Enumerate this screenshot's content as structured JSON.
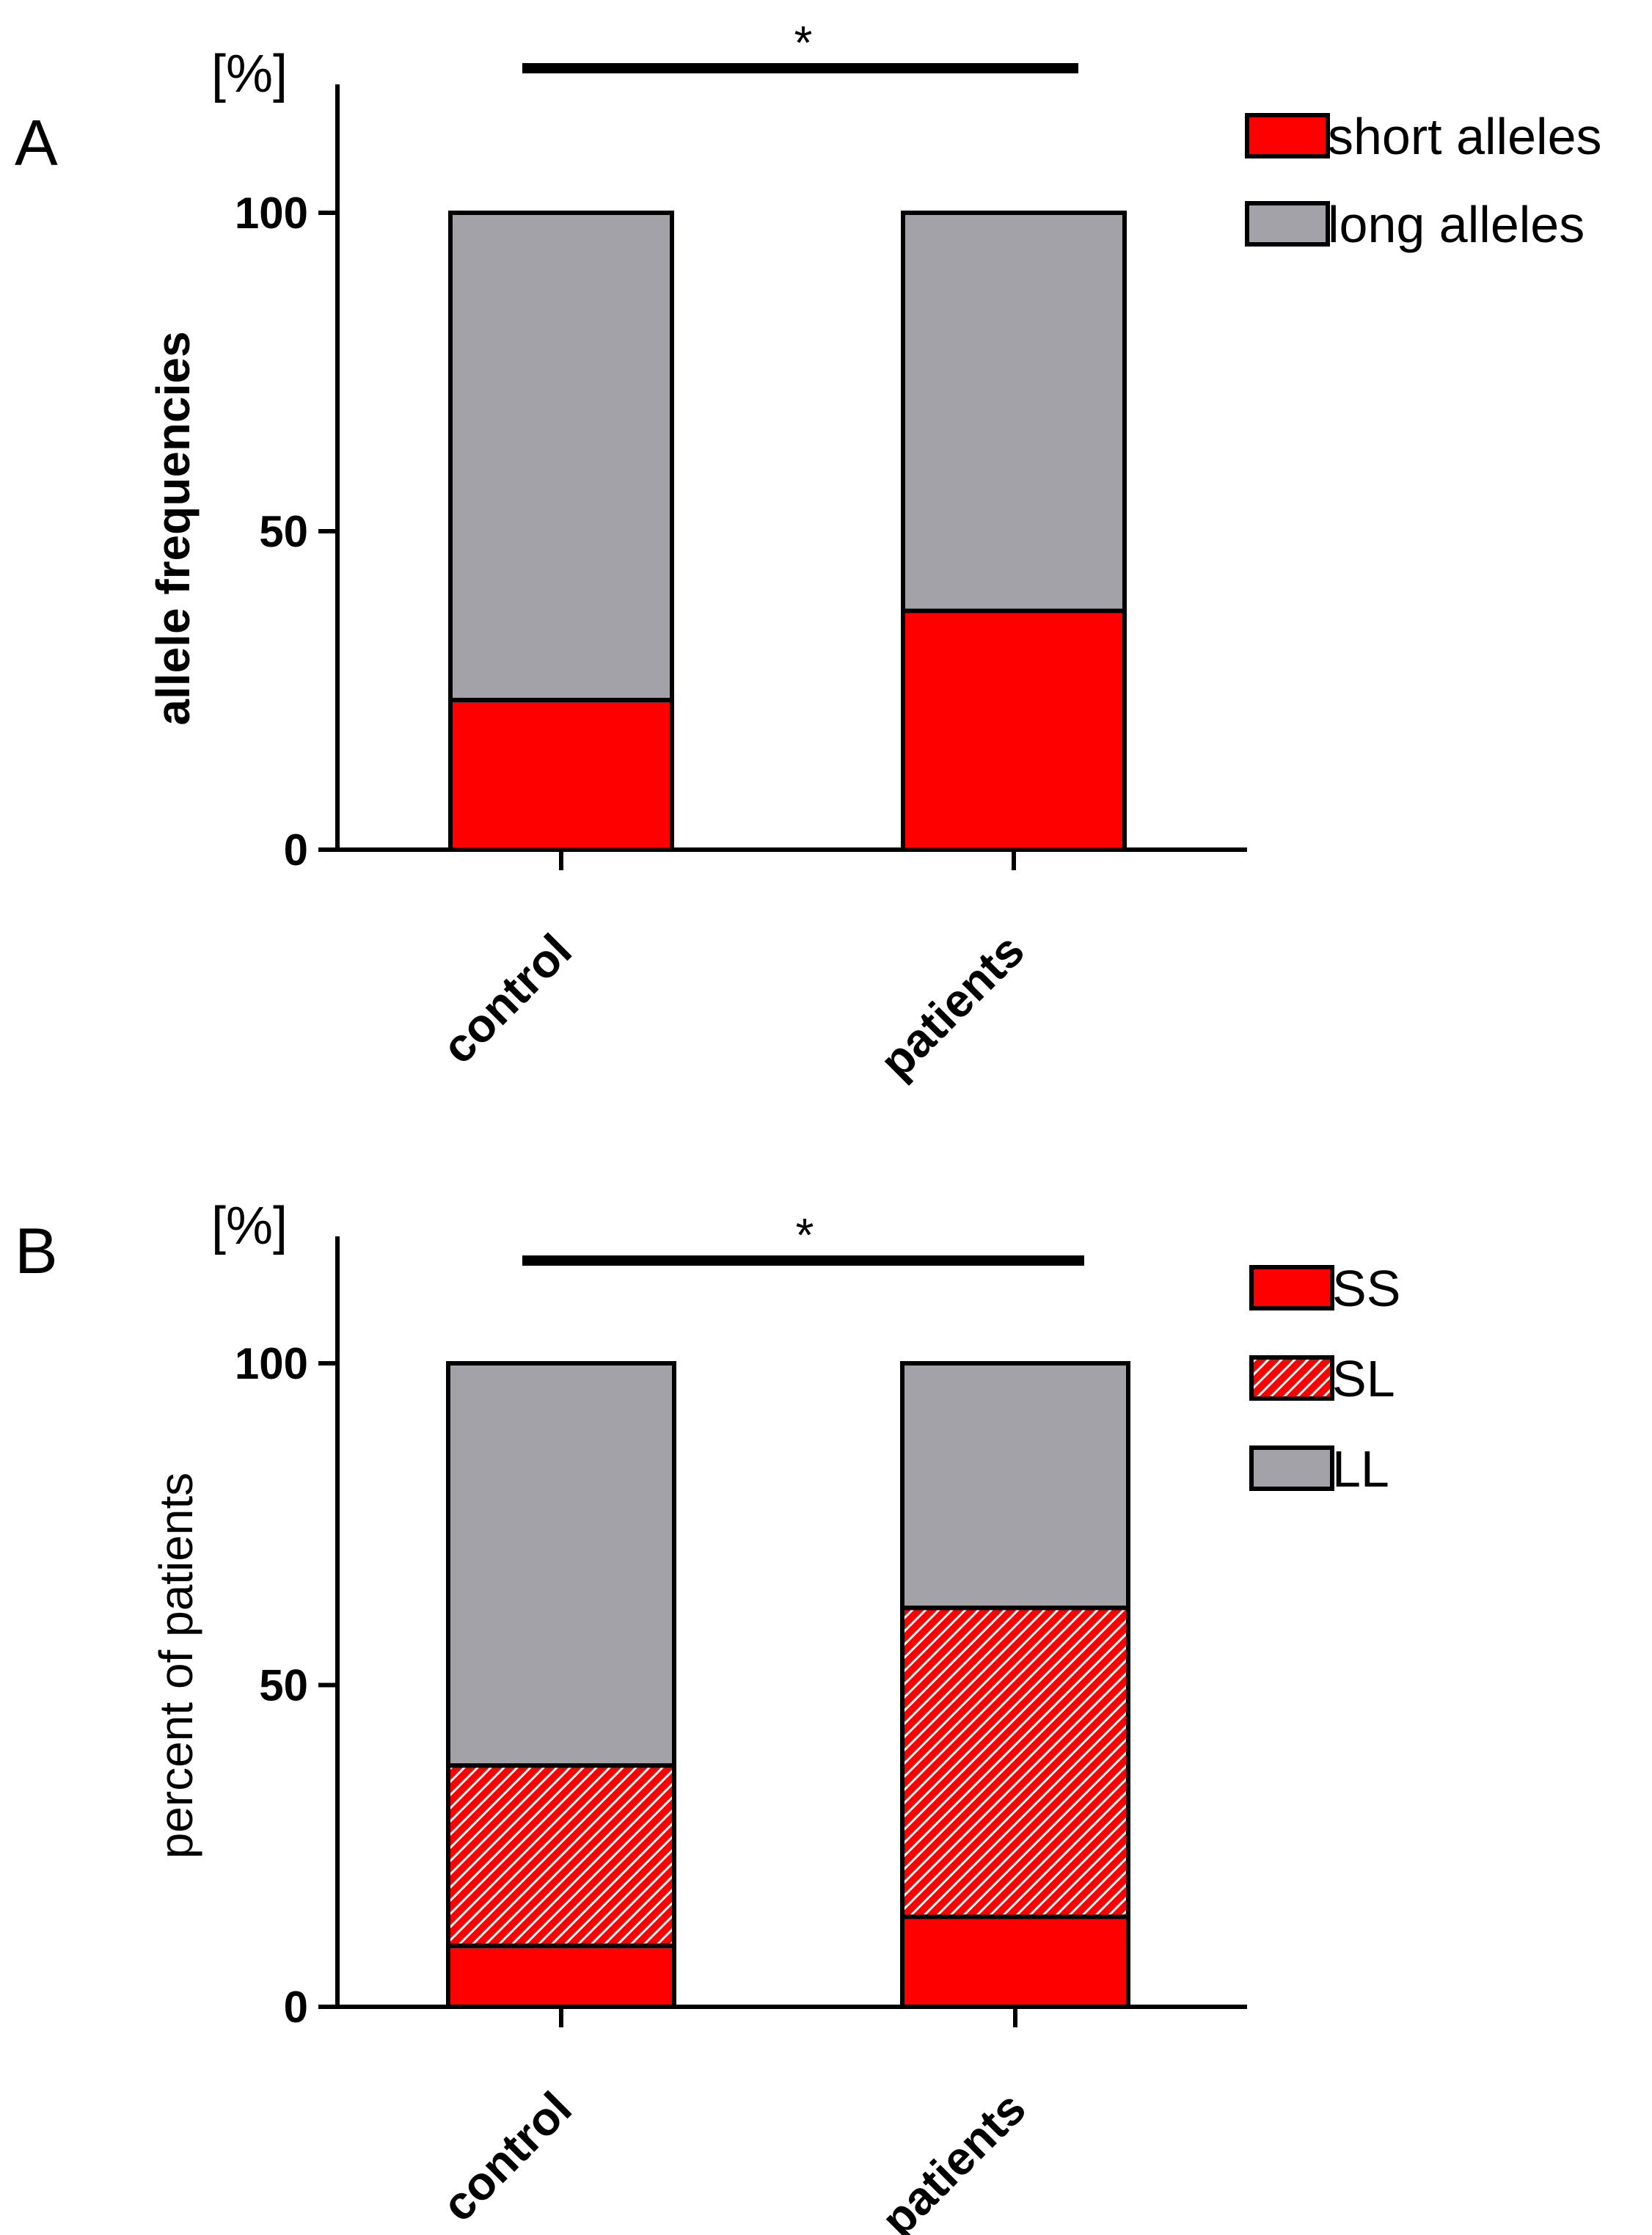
{
  "chart_data": [
    {
      "panel": "A",
      "type": "bar",
      "stacked": true,
      "unit_label": "[%]",
      "ylabel": "allele frequencies",
      "ylim": [
        0,
        120
      ],
      "yticks": [
        0,
        50,
        100
      ],
      "categories": [
        "control",
        "patients"
      ],
      "series": [
        {
          "name": "short alleles",
          "values": [
            23.5,
            37.5
          ],
          "color": "#ff0000",
          "pattern": "solid"
        },
        {
          "name": "long alleles",
          "values": [
            76.5,
            62.5
          ],
          "color": "#a3a2a8",
          "pattern": "solid"
        }
      ],
      "significance": {
        "label": "*",
        "from": "control",
        "to": "patients"
      },
      "legend_position": "top-right"
    },
    {
      "panel": "B",
      "type": "bar",
      "stacked": true,
      "unit_label": "[%]",
      "ylabel": "percent of patients",
      "ylim": [
        0,
        120
      ],
      "yticks": [
        0,
        50,
        100
      ],
      "categories": [
        "control",
        "patients"
      ],
      "series": [
        {
          "name": "SS",
          "values": [
            9.5,
            14.0
          ],
          "color": "#ff0000",
          "pattern": "solid"
        },
        {
          "name": "SL",
          "values": [
            28.0,
            48.0
          ],
          "color": "#ff0000",
          "pattern": "hatched"
        },
        {
          "name": "LL",
          "values": [
            62.5,
            38.0
          ],
          "color": "#a3a2a8",
          "pattern": "solid"
        }
      ],
      "significance": {
        "label": "*",
        "from": "control",
        "to": "patients"
      },
      "legend_position": "top-right"
    }
  ]
}
